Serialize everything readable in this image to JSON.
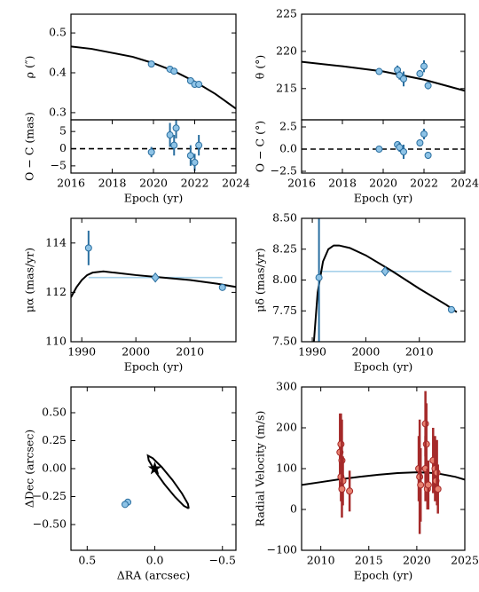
{
  "chart_data": [
    {
      "type": "scatter",
      "ylabel": "ρ (″)",
      "xlim": [
        2016,
        2024
      ],
      "ylim": [
        0.282,
        0.547
      ],
      "yticks": [
        0.3,
        0.4,
        0.5
      ],
      "lines": [
        {
          "color": "#000000",
          "x": [
            2016,
            2017,
            2018,
            2019,
            2020,
            2021,
            2022,
            2023,
            2024
          ],
          "y": [
            0.466,
            0.46,
            0.45,
            0.44,
            0.424,
            0.404,
            0.378,
            0.347,
            0.31
          ]
        }
      ],
      "points": [
        {
          "marker": "circle",
          "color": "#8ec3e6",
          "edgecolor": "#2a6fa0",
          "x": [
            2019.9,
            2020.8,
            2021.0,
            2021.8,
            2022.0,
            2022.2
          ],
          "y": [
            0.422,
            0.409,
            0.404,
            0.38,
            0.371,
            0.371
          ],
          "yerr": [
            0.002,
            0.002,
            0.002,
            0.002,
            0.002,
            0.002
          ]
        }
      ]
    },
    {
      "type": "scatter",
      "ylabel": "O − C (mas)",
      "xlabel": "Epoch (yr)",
      "xlim": [
        2016,
        2024
      ],
      "ylim": [
        -7.1,
        8.4
      ],
      "xticks": [
        2016,
        2018,
        2020,
        2022,
        2024
      ],
      "yticks": [
        {
          "value": -5,
          "label": "−5"
        },
        0,
        5
      ],
      "refline": 0,
      "lines": [],
      "points": [
        {
          "marker": "circle",
          "color": "#8ec3e6",
          "edgecolor": "#2a6fa0",
          "x": [
            2019.9,
            2020.8,
            2021.0,
            2021.1,
            2021.8,
            2022.0,
            2022.2
          ],
          "y": [
            -1,
            4,
            1,
            6,
            -2,
            -4,
            1
          ],
          "yerr": [
            1.5,
            3.5,
            3,
            3,
            3,
            2.5,
            3
          ]
        }
      ]
    },
    {
      "type": "scatter",
      "ylabel": "θ (°)",
      "xlim": [
        2016,
        2024
      ],
      "ylim": [
        210.8,
        225
      ],
      "yticks": [
        215,
        220,
        225
      ],
      "lines": [
        {
          "color": "#000000",
          "x": [
            2016,
            2018,
            2020,
            2022,
            2024
          ],
          "y": [
            218.6,
            218.0,
            217.3,
            216.2,
            214.7
          ]
        }
      ],
      "points": [
        {
          "marker": "circle",
          "color": "#8ec3e6",
          "edgecolor": "#2a6fa0",
          "x": [
            2019.8,
            2020.7,
            2020.8,
            2021.0,
            2021.8,
            2022.0,
            2022.2
          ],
          "y": [
            217.3,
            217.5,
            216.8,
            216.3,
            217.0,
            218.0,
            215.4
          ],
          "yerr": [
            0.2,
            0.6,
            0.6,
            1.0,
            0.5,
            0.8,
            0.5
          ]
        }
      ]
    },
    {
      "type": "scatter",
      "ylabel": "O − C (°)",
      "xlabel": "Epoch (yr)",
      "xlim": [
        2016,
        2024
      ],
      "ylim": [
        -2.7,
        3.3
      ],
      "xticks": [
        2016,
        2018,
        2020,
        2022,
        2024
      ],
      "yticks": [
        {
          "value": -2.5,
          "label": "−2.5"
        },
        {
          "value": 0,
          "label": "0.0"
        },
        2.5
      ],
      "refline": 0,
      "lines": [],
      "points": [
        {
          "marker": "circle",
          "color": "#8ec3e6",
          "edgecolor": "#2a6fa0",
          "x": [
            2019.8,
            2020.7,
            2020.8,
            2021.0,
            2021.8,
            2022.0,
            2022.2
          ],
          "y": [
            0,
            0.5,
            0.2,
            -0.3,
            0.7,
            1.7,
            -0.7
          ],
          "yerr": [
            0.15,
            0.4,
            0.5,
            0.8,
            0.4,
            0.6,
            0.4
          ]
        }
      ]
    },
    {
      "type": "scatter",
      "ylabel": "μα (mas/yr)",
      "xlabel": "Epoch (yr)",
      "xlim": [
        1988,
        2018.5
      ],
      "ylim": [
        110,
        115
      ],
      "xticks": [
        1990,
        2000,
        2010
      ],
      "yticks": [
        110,
        112,
        114
      ],
      "lines": [
        {
          "color": "#a6d1ea",
          "x": [
            1991.25,
            2016
          ],
          "y": [
            112.6,
            112.6
          ]
        },
        {
          "color": "#000000",
          "x": [
            1988,
            1989,
            1990,
            1991,
            1992,
            1994,
            1996,
            2000,
            2005,
            2010,
            2015,
            2019
          ],
          "y": [
            111.8,
            112.2,
            112.5,
            112.7,
            112.8,
            112.85,
            112.8,
            112.7,
            112.6,
            112.5,
            112.35,
            112.2
          ]
        }
      ],
      "points": [
        {
          "marker": "circle",
          "color": "#8ec3e6",
          "edgecolor": "#2a6fa0",
          "x": [
            1991.25,
            2016
          ],
          "y": [
            113.8,
            112.2
          ],
          "yerr": [
            0.7,
            0.05
          ]
        },
        {
          "marker": "diamond",
          "color": "#8ec3e6",
          "edgecolor": "#2a6fa0",
          "x": [
            2003.6
          ],
          "y": [
            112.6
          ],
          "yerr": [
            0.05
          ]
        }
      ]
    },
    {
      "type": "scatter",
      "ylabel": "μδ (mas/yr)",
      "xlabel": "Epoch (yr)",
      "xlim": [
        1988,
        2018.5
      ],
      "ylim": [
        7.5,
        8.5
      ],
      "xticks": [
        1990,
        2000,
        2010
      ],
      "yticks": [
        {
          "value": 7.5,
          "label": "7.50"
        },
        {
          "value": 7.75,
          "label": "7.75"
        },
        {
          "value": 8,
          "label": "8.00"
        },
        {
          "value": 8.25,
          "label": "8.25"
        },
        {
          "value": 8.5,
          "label": "8.50"
        }
      ],
      "lines": [
        {
          "color": "#a6d1ea",
          "x": [
            1991.25,
            2016
          ],
          "y": [
            8.07,
            8.07
          ]
        },
        {
          "color": "#000000",
          "x": [
            1990.3,
            1991,
            1992,
            1993,
            1994,
            1995,
            1997,
            2000,
            2005,
            2010,
            2015,
            2017
          ],
          "y": [
            7.5,
            7.9,
            8.15,
            8.25,
            8.28,
            8.28,
            8.26,
            8.2,
            8.07,
            7.93,
            7.8,
            7.74
          ]
        }
      ],
      "points": [
        {
          "marker": "circle",
          "color": "#8ec3e6",
          "edgecolor": "#2a6fa0",
          "x": [
            1991.25,
            2016
          ],
          "y": [
            8.02,
            7.76
          ],
          "yerr": [
            0.6,
            0.01
          ]
        },
        {
          "marker": "diamond",
          "color": "#8ec3e6",
          "edgecolor": "#2a6fa0",
          "x": [
            2003.6
          ],
          "y": [
            8.07
          ],
          "yerr": [
            0.01
          ]
        }
      ]
    },
    {
      "type": "scatter",
      "ylabel": "ΔDec (arcsec)",
      "xlabel": "ΔRA (arcsec)",
      "xlim": [
        0.62,
        -0.6
      ],
      "ylim": [
        -0.73,
        0.73
      ],
      "xticks": [
        0.5,
        {
          "value": 0,
          "label": "0.0"
        },
        {
          "value": -0.5,
          "label": "−0.5"
        }
      ],
      "yticks": [
        {
          "value": -0.5,
          "label": "−0.50"
        },
        {
          "value": -0.25,
          "label": "−0.25"
        },
        {
          "value": 0,
          "label": "0.00"
        },
        {
          "value": 0.25,
          "label": "0.25"
        },
        {
          "value": 0.5,
          "label": "0.50"
        }
      ],
      "lines": [
        {
          "color": "#000000",
          "x": [
            -0.251,
            -0.215,
            -0.15,
            -0.071,
            0.001,
            0.045,
            0.051,
            0.015,
            -0.051,
            -0.13,
            -0.201,
            -0.245,
            -0.251
          ],
          "y": [
            -0.356,
            -0.333,
            -0.254,
            -0.139,
            -0.018,
            0.075,
            0.116,
            0.093,
            0.014,
            -0.101,
            -0.222,
            -0.315,
            -0.356
          ]
        }
      ],
      "points": [
        {
          "marker": "circle",
          "color": "#8ec3e6",
          "edgecolor": "#2a6fa0",
          "x": [
            0.2,
            0.22
          ],
          "y": [
            -0.3,
            -0.32
          ],
          "yerr": [
            0.005,
            0.005
          ]
        },
        {
          "marker": "star",
          "color": "#000000",
          "edgecolor": "#000000",
          "x": [
            0
          ],
          "y": [
            0
          ],
          "yerr": [
            0
          ]
        }
      ]
    },
    {
      "type": "scatter",
      "ylabel": "Radial Velocity (m/s)",
      "xlabel": "Epoch (yr)",
      "xlim": [
        2008,
        2025
      ],
      "ylim": [
        -100,
        300
      ],
      "xticks": [
        2010,
        2015,
        2020,
        2025
      ],
      "yticks": [
        {
          "value": -100,
          "label": "−100"
        },
        0,
        100,
        200,
        300
      ],
      "lines": [
        {
          "color": "#000000",
          "x": [
            2008,
            2010,
            2012,
            2014,
            2016,
            2018,
            2020,
            2022,
            2024,
            2025
          ],
          "y": [
            60,
            67,
            74,
            80,
            85,
            89,
            91,
            89,
            80,
            73
          ]
        }
      ],
      "points": [
        {
          "marker": "circle",
          "color": "#e8806f",
          "edgecolor": "#a52a2a",
          "x": [
            2012.0,
            2012.1,
            2012.2,
            2012.1,
            2012.3,
            2012.2,
            2013.0,
            2020.2,
            2020.3,
            2020.4,
            2020.9,
            2021.0,
            2020.9,
            2021.1,
            2021.2,
            2021.7,
            2021.9,
            2022.0,
            2022.1,
            2022.2
          ],
          "y": [
            140,
            160,
            120,
            80,
            70,
            50,
            45,
            100,
            80,
            60,
            210,
            160,
            100,
            50,
            60,
            120,
            100,
            70,
            90,
            50
          ],
          "yerr": [
            95,
            75,
            100,
            60,
            60,
            70,
            50,
            80,
            140,
            90,
            80,
            100,
            80,
            50,
            60,
            80,
            80,
            40,
            80,
            60
          ]
        }
      ]
    }
  ]
}
